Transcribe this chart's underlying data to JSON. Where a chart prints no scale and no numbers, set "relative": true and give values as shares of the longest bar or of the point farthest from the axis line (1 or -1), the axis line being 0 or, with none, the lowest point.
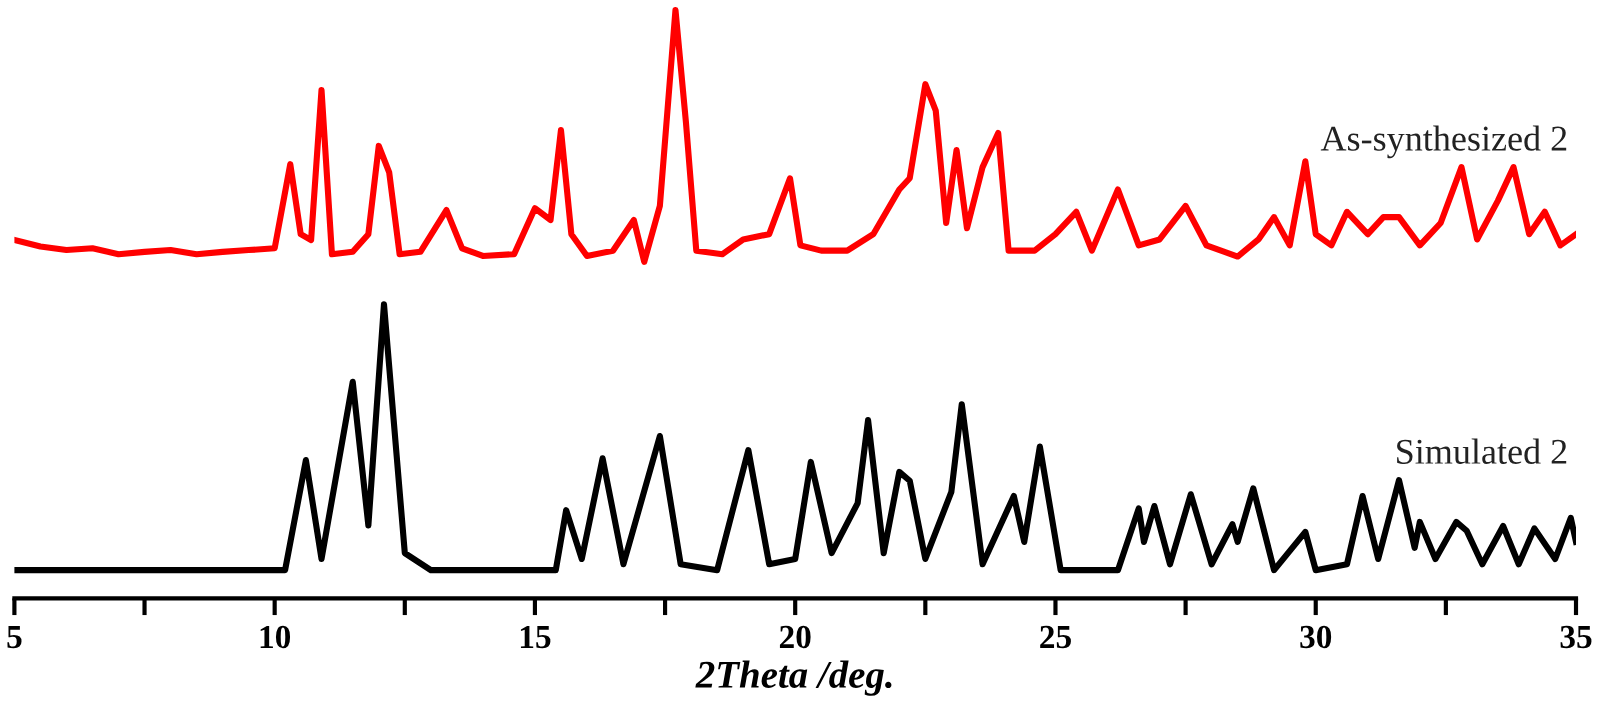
{
  "chart_data": {
    "type": "line",
    "relative": true,
    "xlabel": "2Theta /deg.",
    "xlim": [
      5,
      35
    ],
    "xticks": [
      5,
      {
        "value": 7.5,
        "label": null
      },
      10,
      {
        "value": 12.5,
        "label": null
      },
      15,
      {
        "value": 17.5,
        "label": null
      },
      20,
      {
        "value": 22.5,
        "label": null
      },
      25,
      {
        "value": 27.5,
        "label": null
      },
      30,
      {
        "value": 32.5,
        "label": null
      },
      35
    ],
    "tick_labels": "x",
    "grid": false,
    "legend": false,
    "marker": "none",
    "line_style": "solid",
    "series": [
      {
        "name": "As-synthesized 2",
        "color": "#ff0000",
        "x": [
          5.0,
          5.5,
          6.0,
          6.5,
          7.0,
          7.5,
          8.0,
          8.5,
          9.0,
          9.5,
          10.0,
          10.3,
          10.5,
          10.7,
          10.9,
          11.1,
          11.5,
          11.8,
          12.0,
          12.2,
          12.4,
          12.8,
          13.3,
          13.6,
          14.0,
          14.6,
          15.0,
          15.3,
          15.5,
          15.7,
          16.0,
          16.5,
          16.9,
          17.1,
          17.4,
          17.7,
          17.9,
          18.1,
          18.6,
          19.0,
          19.5,
          19.9,
          20.1,
          20.5,
          21.0,
          21.5,
          22.0,
          22.2,
          22.5,
          22.7,
          22.9,
          23.1,
          23.3,
          23.6,
          23.9,
          24.1,
          24.6,
          25.0,
          25.4,
          25.7,
          26.2,
          26.6,
          27.0,
          27.5,
          27.9,
          28.5,
          28.9,
          29.2,
          29.5,
          29.8,
          30.0,
          30.3,
          30.6,
          31.0,
          31.3,
          31.6,
          32.0,
          32.4,
          32.8,
          33.1,
          33.5,
          33.8,
          34.1,
          34.4,
          34.7,
          35.0
        ],
        "values": [
          0.609,
          0.598,
          0.592,
          0.595,
          0.585,
          0.589,
          0.592,
          0.585,
          0.589,
          0.592,
          0.595,
          0.738,
          0.619,
          0.609,
          0.864,
          0.585,
          0.589,
          0.619,
          0.769,
          0.724,
          0.585,
          0.589,
          0.66,
          0.595,
          0.582,
          0.585,
          0.663,
          0.643,
          0.796,
          0.619,
          0.582,
          0.591,
          0.643,
          0.572,
          0.667,
          1.0,
          0.81,
          0.591,
          0.585,
          0.61,
          0.619,
          0.714,
          0.6,
          0.591,
          0.591,
          0.619,
          0.695,
          0.714,
          0.874,
          0.829,
          0.638,
          0.762,
          0.629,
          0.733,
          0.791,
          0.591,
          0.591,
          0.619,
          0.657,
          0.591,
          0.695,
          0.6,
          0.61,
          0.667,
          0.6,
          0.581,
          0.61,
          0.648,
          0.6,
          0.743,
          0.619,
          0.6,
          0.657,
          0.619,
          0.648,
          0.648,
          0.6,
          0.638,
          0.733,
          0.61,
          0.676,
          0.733,
          0.619,
          0.657,
          0.6,
          0.619
        ]
      },
      {
        "name": "Simulated 2",
        "color": "#000000",
        "x": [
          5.0,
          10.2,
          10.6,
          10.9,
          11.5,
          11.8,
          12.1,
          12.5,
          13.0,
          15.4,
          15.6,
          15.9,
          16.3,
          16.7,
          17.4,
          17.8,
          18.5,
          19.1,
          19.5,
          20.0,
          20.3,
          20.7,
          21.2,
          21.4,
          21.7,
          22.0,
          22.2,
          22.5,
          23.0,
          23.2,
          23.6,
          24.2,
          24.4,
          24.7,
          25.1,
          26.2,
          26.6,
          26.7,
          26.9,
          27.2,
          27.6,
          28.0,
          28.4,
          28.5,
          28.8,
          29.2,
          29.8,
          30.0,
          30.6,
          30.9,
          31.2,
          31.6,
          31.9,
          32.0,
          32.3,
          32.7,
          32.9,
          33.2,
          33.6,
          33.9,
          34.2,
          34.6,
          34.9,
          35.0
        ],
        "values": [
          0.048,
          0.048,
          0.235,
          0.067,
          0.368,
          0.124,
          0.5,
          0.077,
          0.048,
          0.048,
          0.15,
          0.067,
          0.238,
          0.058,
          0.276,
          0.058,
          0.048,
          0.252,
          0.058,
          0.067,
          0.232,
          0.077,
          0.162,
          0.303,
          0.077,
          0.215,
          0.2,
          0.067,
          0.181,
          0.33,
          0.058,
          0.174,
          0.096,
          0.258,
          0.048,
          0.048,
          0.153,
          0.096,
          0.157,
          0.058,
          0.177,
          0.058,
          0.126,
          0.096,
          0.187,
          0.048,
          0.113,
          0.048,
          0.058,
          0.174,
          0.067,
          0.201,
          0.086,
          0.13,
          0.067,
          0.13,
          0.115,
          0.058,
          0.123,
          0.058,
          0.119,
          0.067,
          0.137,
          0.096
        ]
      }
    ]
  }
}
